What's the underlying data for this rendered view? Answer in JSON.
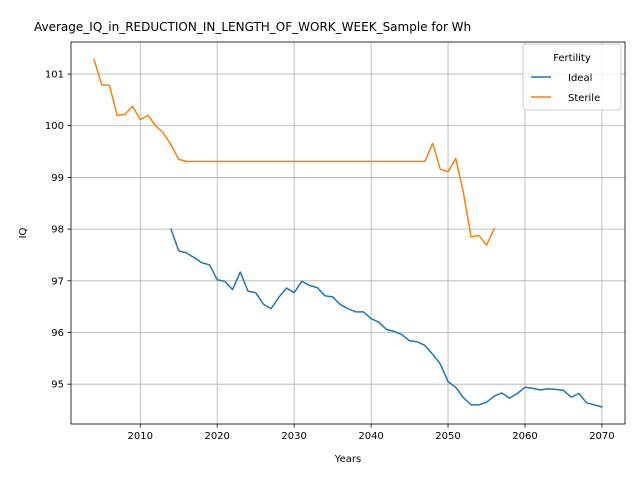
{
  "chart_data": {
    "type": "line",
    "title": "Average_IQ_in_REDUCTION_IN_LENGTH_OF_WORK_WEEK_Sample for Wh",
    "xlabel": "Years",
    "ylabel": "IQ",
    "xlim": [
      2001,
      2073
    ],
    "ylim": [
      94.23,
      101.62
    ],
    "xticks": [
      2010,
      2020,
      2030,
      2040,
      2050,
      2060,
      2070
    ],
    "yticks": [
      95,
      96,
      97,
      98,
      99,
      100,
      101
    ],
    "grid": true,
    "legend": {
      "title": "Fertility",
      "position": "upper right"
    },
    "series": [
      {
        "name": "Ideal",
        "color": "#1f77b4",
        "x": [
          2014,
          2015,
          2016,
          2017,
          2018,
          2019,
          2020,
          2021,
          2022,
          2023,
          2024,
          2025,
          2026,
          2027,
          2028,
          2029,
          2030,
          2031,
          2032,
          2033,
          2034,
          2035,
          2036,
          2037,
          2038,
          2039,
          2040,
          2041,
          2042,
          2043,
          2044,
          2045,
          2046,
          2047,
          2048,
          2049,
          2050,
          2051,
          2052,
          2053,
          2054,
          2055,
          2056,
          2057,
          2058,
          2059,
          2060,
          2061,
          2062,
          2063,
          2064,
          2065,
          2066,
          2067,
          2068,
          2069,
          2070
        ],
        "y": [
          98.0,
          97.58,
          97.54,
          97.45,
          97.35,
          97.31,
          97.02,
          96.99,
          96.83,
          97.17,
          96.8,
          96.77,
          96.55,
          96.46,
          96.68,
          96.86,
          96.77,
          96.99,
          96.91,
          96.87,
          96.71,
          96.69,
          96.54,
          96.46,
          96.4,
          96.4,
          96.27,
          96.2,
          96.06,
          96.02,
          95.96,
          95.84,
          95.82,
          95.75,
          95.58,
          95.39,
          95.05,
          94.94,
          94.74,
          94.6,
          94.6,
          94.65,
          94.77,
          94.83,
          94.73,
          94.82,
          94.94,
          94.92,
          94.89,
          94.91,
          94.9,
          94.88,
          94.75,
          94.82,
          94.64,
          94.6,
          94.56
        ]
      },
      {
        "name": "Sterile",
        "color": "#ff7f0e",
        "x": [
          2004,
          2005,
          2006,
          2007,
          2008,
          2009,
          2010,
          2011,
          2012,
          2013,
          2014,
          2015,
          2016,
          2017,
          2018,
          2019,
          2020,
          2021,
          2022,
          2023,
          2024,
          2025,
          2026,
          2027,
          2028,
          2029,
          2030,
          2031,
          2032,
          2033,
          2034,
          2035,
          2036,
          2037,
          2038,
          2039,
          2040,
          2041,
          2042,
          2043,
          2044,
          2045,
          2046,
          2047,
          2048,
          2049,
          2050,
          2051,
          2052,
          2053,
          2054,
          2055,
          2056
        ],
        "y": [
          101.28,
          100.79,
          100.78,
          100.2,
          100.22,
          100.38,
          100.12,
          100.2,
          100.0,
          99.86,
          99.63,
          99.35,
          99.31,
          99.31,
          99.31,
          99.31,
          99.31,
          99.31,
          99.31,
          99.31,
          99.31,
          99.31,
          99.31,
          99.31,
          99.31,
          99.31,
          99.31,
          99.31,
          99.31,
          99.31,
          99.31,
          99.31,
          99.31,
          99.31,
          99.31,
          99.31,
          99.31,
          99.31,
          99.31,
          99.31,
          99.31,
          99.31,
          99.31,
          99.31,
          99.66,
          99.16,
          99.11,
          99.37,
          98.7,
          97.85,
          97.88,
          97.69,
          98.01
        ]
      }
    ]
  }
}
